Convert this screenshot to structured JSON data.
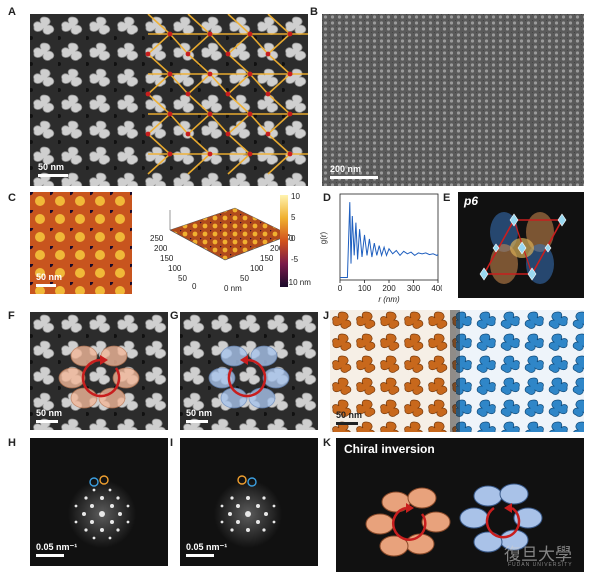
{
  "panels": {
    "A": {
      "label": "A",
      "scale": "50 nm"
    },
    "B": {
      "label": "B",
      "scale": "200 nm"
    },
    "C": {
      "label": "C",
      "scale": "50 nm",
      "axis_ticks_y": [
        "250",
        "200",
        "150",
        "100",
        "50",
        "0"
      ],
      "axis_ticks_x": [
        "0 nm",
        "50",
        "100",
        "150",
        "200",
        "250"
      ],
      "colorbar_ticks": [
        "10",
        "5",
        "0",
        "-5",
        "-10 nm"
      ]
    },
    "D": {
      "label": "D"
    },
    "E": {
      "label": "E",
      "group": "p6"
    },
    "F": {
      "label": "F",
      "scale": "50 nm"
    },
    "G": {
      "label": "G",
      "scale": "50 nm"
    },
    "H": {
      "label": "H",
      "scale": "0.05 nm⁻¹"
    },
    "I": {
      "label": "I",
      "scale": "0.05 nm⁻¹"
    },
    "J": {
      "label": "J",
      "scale": "50 nm"
    },
    "K": {
      "label": "K",
      "title": "Chiral inversion",
      "watermark": "復旦大學",
      "watermark_sub": "FUDAN UNIVERSITY"
    }
  },
  "colors": {
    "orange": "#e89a55",
    "blue": "#3c8fd0",
    "red": "#c81e1e",
    "dark": "#111111",
    "lattice": "#f0b030"
  },
  "chart_data": {
    "type": "line",
    "xlabel": "r (nm)",
    "ylabel": "g(r)",
    "xlim": [
      0,
      400
    ],
    "xticks": [
      "0",
      "100",
      "200",
      "300",
      "400"
    ],
    "x": [
      0,
      30,
      40,
      45,
      50,
      58,
      65,
      72,
      80,
      90,
      100,
      110,
      120,
      130,
      140,
      150,
      160,
      170,
      180,
      190,
      200,
      215,
      230,
      245,
      260,
      275,
      290,
      305,
      320,
      335,
      350,
      365,
      380,
      395,
      400
    ],
    "y": [
      0.03,
      0.03,
      0.95,
      0.2,
      0.78,
      0.3,
      0.7,
      0.25,
      0.62,
      0.28,
      0.55,
      0.3,
      0.5,
      0.28,
      0.45,
      0.3,
      0.42,
      0.3,
      0.4,
      0.3,
      0.38,
      0.32,
      0.36,
      0.3,
      0.35,
      0.32,
      0.34,
      0.3,
      0.33,
      0.32,
      0.33,
      0.31,
      0.32,
      0.3,
      0.31
    ]
  }
}
